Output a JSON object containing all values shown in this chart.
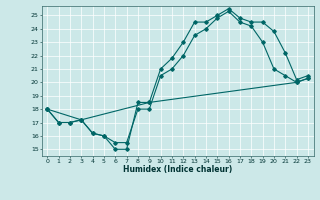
{
  "xlabel": "Humidex (Indice chaleur)",
  "background_color": "#cce8e8",
  "grid_color": "#ffffff",
  "line_color": "#006666",
  "xlim": [
    -0.5,
    23.5
  ],
  "ylim": [
    14.5,
    25.7
  ],
  "xticks": [
    0,
    1,
    2,
    3,
    4,
    5,
    6,
    7,
    8,
    9,
    10,
    11,
    12,
    13,
    14,
    15,
    16,
    17,
    18,
    19,
    20,
    21,
    22,
    23
  ],
  "yticks": [
    15,
    16,
    17,
    18,
    19,
    20,
    21,
    22,
    23,
    24,
    25
  ],
  "line1_x": [
    0,
    1,
    2,
    3,
    4,
    5,
    6,
    7,
    8,
    9,
    10,
    11,
    12,
    13,
    14,
    15,
    16,
    17,
    18,
    19,
    20,
    21,
    22,
    23
  ],
  "line1_y": [
    18,
    17,
    17,
    17.2,
    16.2,
    16,
    15,
    15,
    18.5,
    18.5,
    21,
    21.8,
    23,
    24.5,
    24.5,
    25,
    25.5,
    24.8,
    24.5,
    24.5,
    23.8,
    22.2,
    20.2,
    20.5
  ],
  "line2_x": [
    0,
    1,
    2,
    3,
    4,
    5,
    6,
    7,
    8,
    9,
    10,
    11,
    12,
    13,
    14,
    15,
    16,
    17,
    18,
    19,
    20,
    21,
    22,
    23
  ],
  "line2_y": [
    18,
    17,
    17,
    17.2,
    16.2,
    16,
    15.5,
    15.5,
    18,
    18,
    20.5,
    21,
    22,
    23.5,
    24,
    24.8,
    25.3,
    24.5,
    24.2,
    23,
    21,
    20.5,
    20,
    20.3
  ],
  "line3_x": [
    0,
    3,
    9,
    22,
    23
  ],
  "line3_y": [
    18,
    17.2,
    18.5,
    20,
    20.3
  ],
  "xlabel_fontsize": 5.5,
  "tick_fontsize": 4.5,
  "marker_size": 1.8,
  "line_width": 0.8
}
